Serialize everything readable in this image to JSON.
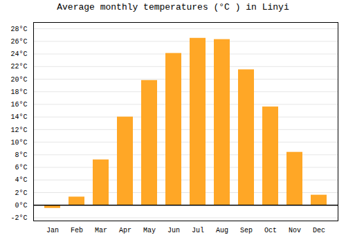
{
  "chart_data": {
    "type": "bar",
    "title": "Average monthly temperatures (°C ) in Linyi",
    "categories": [
      "Jan",
      "Feb",
      "Mar",
      "Apr",
      "May",
      "Jun",
      "Jul",
      "Aug",
      "Sep",
      "Oct",
      "Nov",
      "Dec"
    ],
    "values": [
      -0.5,
      1.3,
      7.2,
      14.0,
      19.8,
      24.1,
      26.5,
      26.3,
      21.5,
      15.6,
      8.4,
      1.6
    ],
    "color": "#FFA726",
    "ylim": [
      -2.5,
      29
    ],
    "yticks": [
      {
        "value": -2,
        "label": "-2°C"
      },
      {
        "value": 0,
        "label": "0°C"
      },
      {
        "value": 2,
        "label": "2°C"
      },
      {
        "value": 4,
        "label": "4°C"
      },
      {
        "value": 6,
        "label": "6°C"
      },
      {
        "value": 8,
        "label": "8°C"
      },
      {
        "value": 10,
        "label": "10°C"
      },
      {
        "value": 12,
        "label": "12°C"
      },
      {
        "value": 14,
        "label": "14°C"
      },
      {
        "value": 16,
        "label": "16°C"
      },
      {
        "value": 18,
        "label": "18°C"
      },
      {
        "value": 20,
        "label": "20°C"
      },
      {
        "value": 22,
        "label": "22°C"
      },
      {
        "value": 24,
        "label": "24°C"
      },
      {
        "value": 26,
        "label": "26°C"
      },
      {
        "value": 28,
        "label": "28°C"
      }
    ],
    "grid": true
  }
}
